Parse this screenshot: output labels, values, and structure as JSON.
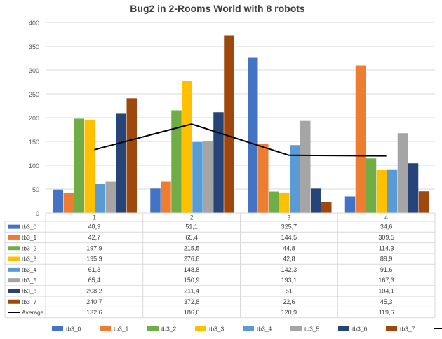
{
  "chart_data": {
    "type": "bar",
    "title": "Bug2 in 2-Rooms World with 8 robots",
    "categories": [
      "1",
      "2",
      "3",
      "4"
    ],
    "ylim": [
      0,
      400
    ],
    "yticks": [
      0,
      50,
      100,
      150,
      200,
      250,
      300,
      350,
      400
    ],
    "grid": true,
    "legend": "bottom",
    "series": [
      {
        "name": "tb3_0",
        "color": "#4472C4",
        "values": [
          48.9,
          51.1,
          325.7,
          34.6
        ],
        "labels": [
          "48,9",
          "51,1",
          "325,7",
          "34,6"
        ]
      },
      {
        "name": "tb3_1",
        "color": "#ED7D31",
        "values": [
          42.7,
          65.4,
          144.5,
          309.5
        ],
        "labels": [
          "42,7",
          "65,4",
          "144,5",
          "309,5"
        ]
      },
      {
        "name": "tb3_2",
        "color": "#70AD47",
        "values": [
          197.9,
          215.5,
          44.8,
          114.3
        ],
        "labels": [
          "197,9",
          "215,5",
          "44,8",
          "114,3"
        ]
      },
      {
        "name": "tb3_3",
        "color": "#FFC000",
        "values": [
          195.9,
          276.8,
          42.8,
          89.9
        ],
        "labels": [
          "195,9",
          "276,8",
          "42,8",
          "89,9"
        ]
      },
      {
        "name": "tb3_4",
        "color": "#5B9BD5",
        "values": [
          61.3,
          148.8,
          142.3,
          91.6
        ],
        "labels": [
          "61,3",
          "148,8",
          "142,3",
          "91,6"
        ]
      },
      {
        "name": "tb3_5",
        "color": "#A5A5A5",
        "values": [
          65.4,
          150.9,
          193.1,
          167.3
        ],
        "labels": [
          "65,4",
          "150,9",
          "193,1",
          "167,3"
        ]
      },
      {
        "name": "tb3_6",
        "color": "#264478",
        "values": [
          208.2,
          211.4,
          51,
          104.1
        ],
        "labels": [
          "208,2",
          "211,4",
          "51",
          "104,1"
        ]
      },
      {
        "name": "tb3_7",
        "color": "#9E480E",
        "values": [
          240.7,
          372.8,
          22.6,
          45.3
        ],
        "labels": [
          "240,7",
          "372,8",
          "22,6",
          "45,3"
        ]
      }
    ],
    "line_series": {
      "name": "Average",
      "color": "#000000",
      "values": [
        132.6,
        186.6,
        120.9,
        119.6
      ],
      "labels": [
        "132,6",
        "186,6",
        "120,9",
        "119,6"
      ]
    }
  }
}
